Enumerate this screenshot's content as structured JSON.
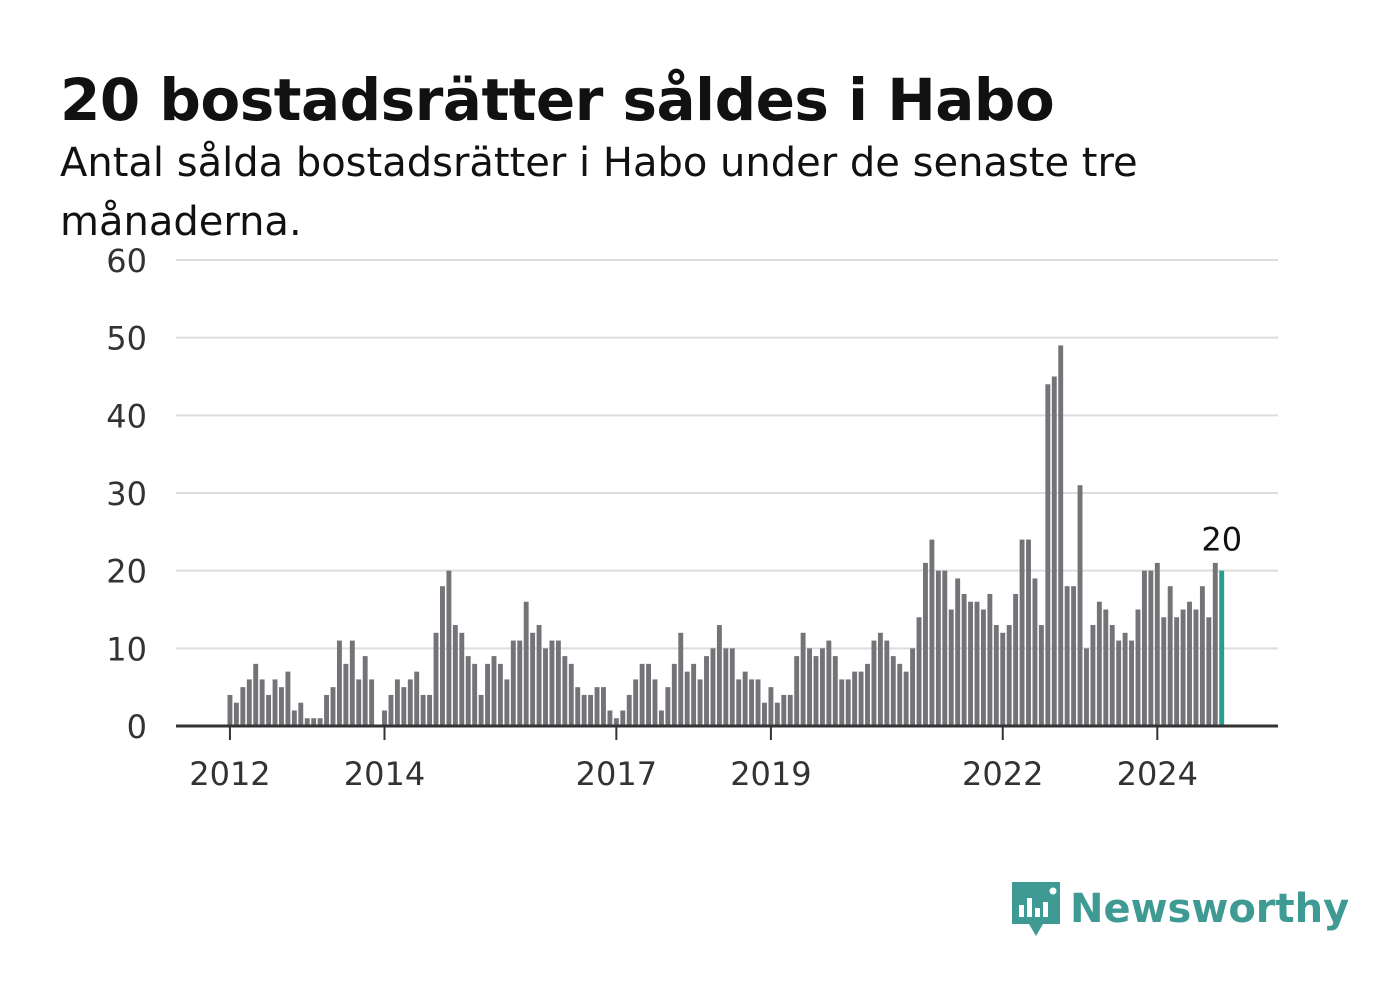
{
  "title": "20 bostadsrätter såldes i Habo",
  "subtitle": "Antal sålda bostadsrätter i Habo under de senaste tre månaderna.",
  "brand": {
    "name": "Newsworthy",
    "color": "#3e9a92"
  },
  "colors": {
    "bar": "#747378",
    "highlight": "#2a9d8f",
    "grid": "#dddddd",
    "axis": "#333333"
  },
  "chart_data": {
    "type": "bar",
    "ylim": [
      0,
      60
    ],
    "yticks": [
      0,
      10,
      20,
      30,
      40,
      50,
      60
    ],
    "xticks": [
      {
        "label": "2012",
        "date": "2012-01"
      },
      {
        "label": "2014",
        "date": "2014-01"
      },
      {
        "label": "2017",
        "date": "2017-01"
      },
      {
        "label": "2019",
        "date": "2019-01"
      },
      {
        "label": "2022",
        "date": "2022-01"
      },
      {
        "label": "2024",
        "date": "2024-01"
      }
    ],
    "start": "2012-01",
    "values": [
      4,
      3,
      5,
      6,
      8,
      6,
      4,
      6,
      5,
      7,
      2,
      3,
      1,
      1,
      1,
      4,
      5,
      11,
      8,
      11,
      6,
      9,
      6,
      0,
      2,
      4,
      6,
      5,
      6,
      7,
      4,
      4,
      12,
      18,
      20,
      13,
      12,
      9,
      8,
      4,
      8,
      9,
      8,
      6,
      11,
      11,
      16,
      12,
      13,
      10,
      11,
      11,
      9,
      8,
      5,
      4,
      4,
      5,
      5,
      2,
      1,
      2,
      4,
      6,
      8,
      8,
      6,
      2,
      5,
      8,
      12,
      7,
      8,
      6,
      9,
      10,
      13,
      10,
      10,
      6,
      7,
      6,
      6,
      3,
      5,
      3,
      4,
      4,
      9,
      12,
      10,
      9,
      10,
      11,
      9,
      6,
      6,
      7,
      7,
      8,
      11,
      12,
      11,
      9,
      8,
      7,
      10,
      14,
      21,
      24,
      20,
      20,
      15,
      19,
      17,
      16,
      16,
      15,
      17,
      13,
      12,
      13,
      17,
      24,
      24,
      19,
      13,
      44,
      45,
      49,
      18,
      18,
      31,
      10,
      13,
      16,
      15,
      13,
      11,
      12,
      11,
      15,
      20,
      20,
      21,
      14,
      18,
      14,
      15,
      16,
      15,
      18,
      14,
      21,
      20
    ],
    "highlight_label": "20"
  }
}
